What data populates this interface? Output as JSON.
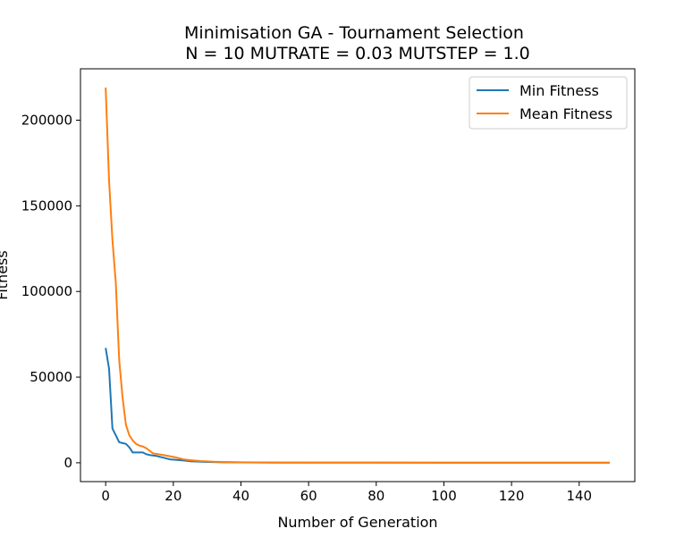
{
  "chart_data": {
    "type": "line",
    "title": "Minimisation GA - Tournament Selection",
    "subtitle": "N = 10 MUTRATE = 0.03 MUTSTEP = 1.0",
    "xlabel": "Number of Generation",
    "ylabel": "Fitness",
    "xlim": [
      -7.45,
      156.45
    ],
    "ylim": [
      -11000,
      230000
    ],
    "xticks": [
      0,
      20,
      40,
      60,
      80,
      100,
      120,
      140
    ],
    "yticks": [
      0,
      50000,
      100000,
      150000,
      200000
    ],
    "xtick_labels": [
      "0",
      "20",
      "40",
      "60",
      "80",
      "100",
      "120",
      "140"
    ],
    "ytick_labels": [
      "0",
      "50000",
      "100000",
      "150000",
      "200000"
    ],
    "grid": false,
    "legend_position": "top-right",
    "series": [
      {
        "name": "Min Fitness",
        "color": "#1f77b4",
        "points": [
          [
            0,
            67000
          ],
          [
            1,
            55000
          ],
          [
            2,
            20000
          ],
          [
            3,
            16000
          ],
          [
            4,
            12000
          ],
          [
            5,
            11500
          ],
          [
            6,
            11000
          ],
          [
            7,
            9000
          ],
          [
            8,
            6000
          ],
          [
            10,
            6000
          ],
          [
            11,
            6000
          ],
          [
            12,
            5000
          ],
          [
            13,
            4500
          ],
          [
            15,
            4000
          ],
          [
            17,
            3000
          ],
          [
            19,
            2000
          ],
          [
            22,
            1500
          ],
          [
            25,
            900
          ],
          [
            30,
            500
          ],
          [
            35,
            300
          ],
          [
            40,
            200
          ],
          [
            50,
            100
          ],
          [
            60,
            80
          ],
          [
            80,
            60
          ],
          [
            100,
            50
          ],
          [
            120,
            50
          ],
          [
            140,
            50
          ],
          [
            149,
            50
          ]
        ]
      },
      {
        "name": "Mean Fitness",
        "color": "#ff7f0e",
        "points": [
          [
            0,
            219000
          ],
          [
            1,
            165000
          ],
          [
            2,
            130000
          ],
          [
            3,
            105000
          ],
          [
            4,
            60000
          ],
          [
            5,
            38000
          ],
          [
            6,
            22000
          ],
          [
            7,
            16000
          ],
          [
            8,
            13000
          ],
          [
            9,
            11000
          ],
          [
            10,
            10000
          ],
          [
            11,
            9500
          ],
          [
            12,
            8500
          ],
          [
            13,
            7000
          ],
          [
            14,
            5500
          ],
          [
            15,
            5200
          ],
          [
            17,
            4500
          ],
          [
            19,
            3800
          ],
          [
            21,
            3000
          ],
          [
            23,
            2000
          ],
          [
            25,
            1500
          ],
          [
            28,
            1000
          ],
          [
            32,
            600
          ],
          [
            36,
            400
          ],
          [
            40,
            300
          ],
          [
            45,
            200
          ],
          [
            50,
            150
          ],
          [
            60,
            100
          ],
          [
            80,
            80
          ],
          [
            100,
            70
          ],
          [
            120,
            60
          ],
          [
            140,
            60
          ],
          [
            149,
            60
          ]
        ]
      }
    ]
  }
}
